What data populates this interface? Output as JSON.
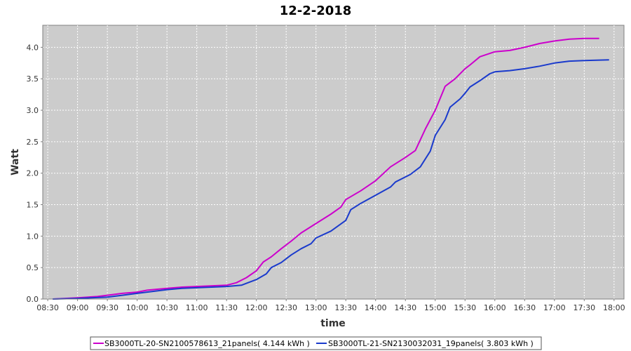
{
  "chart_data": {
    "type": "line",
    "title": "12-2-2018",
    "xlabel": "time",
    "ylabel": "Watt",
    "x_ticks": [
      "08:30",
      "09:00",
      "09:30",
      "10:00",
      "10:30",
      "11:00",
      "11:30",
      "12:00",
      "12:30",
      "13:00",
      "13:30",
      "14:00",
      "14:30",
      "15:00",
      "15:30",
      "16:00",
      "16:30",
      "17:00",
      "17:30",
      "18:00"
    ],
    "y_ticks": [
      "0.0",
      "0.5",
      "1.0",
      "1.5",
      "2.0",
      "2.5",
      "3.0",
      "3.5",
      "4.0"
    ],
    "xlim": [
      "08:25",
      "18:10"
    ],
    "ylim": [
      0,
      4.35
    ],
    "grid": true,
    "legend": "bottom",
    "series": [
      {
        "name": "SB3000TL-20-SN2100578613_21panels( 4.144 kWh )",
        "color": "#cc00cc",
        "points": [
          [
            "08:35",
            0.0
          ],
          [
            "09:00",
            0.02
          ],
          [
            "09:20",
            0.04
          ],
          [
            "09:30",
            0.06
          ],
          [
            "09:45",
            0.09
          ],
          [
            "10:00",
            0.11
          ],
          [
            "10:10",
            0.14
          ],
          [
            "10:30",
            0.17
          ],
          [
            "10:45",
            0.19
          ],
          [
            "11:00",
            0.2
          ],
          [
            "11:30",
            0.22
          ],
          [
            "11:40",
            0.26
          ],
          [
            "11:50",
            0.34
          ],
          [
            "12:00",
            0.45
          ],
          [
            "12:07",
            0.59
          ],
          [
            "12:15",
            0.67
          ],
          [
            "12:25",
            0.8
          ],
          [
            "12:35",
            0.92
          ],
          [
            "12:45",
            1.05
          ],
          [
            "13:00",
            1.2
          ],
          [
            "13:15",
            1.35
          ],
          [
            "13:25",
            1.46
          ],
          [
            "13:30",
            1.58
          ],
          [
            "13:45",
            1.72
          ],
          [
            "14:00",
            1.88
          ],
          [
            "14:15",
            2.1
          ],
          [
            "14:30",
            2.25
          ],
          [
            "14:40",
            2.36
          ],
          [
            "14:50",
            2.7
          ],
          [
            "15:00",
            3.0
          ],
          [
            "15:10",
            3.38
          ],
          [
            "15:20",
            3.5
          ],
          [
            "15:30",
            3.66
          ],
          [
            "15:35",
            3.72
          ],
          [
            "15:45",
            3.85
          ],
          [
            "16:00",
            3.93
          ],
          [
            "16:15",
            3.95
          ],
          [
            "16:30",
            4.0
          ],
          [
            "16:45",
            4.06
          ],
          [
            "17:00",
            4.1
          ],
          [
            "17:15",
            4.13
          ],
          [
            "17:30",
            4.14
          ],
          [
            "17:45",
            4.14
          ]
        ]
      },
      {
        "name": "SB3000TL-21-SN2130032031_19panels( 3.803 kWh )",
        "color": "#1a3acc",
        "points": [
          [
            "08:35",
            0.0
          ],
          [
            "09:00",
            0.01
          ],
          [
            "09:30",
            0.03
          ],
          [
            "09:45",
            0.06
          ],
          [
            "10:00",
            0.09
          ],
          [
            "10:15",
            0.12
          ],
          [
            "10:30",
            0.15
          ],
          [
            "10:45",
            0.17
          ],
          [
            "11:00",
            0.18
          ],
          [
            "11:30",
            0.2
          ],
          [
            "11:45",
            0.22
          ],
          [
            "11:50",
            0.25
          ],
          [
            "12:00",
            0.31
          ],
          [
            "12:10",
            0.4
          ],
          [
            "12:15",
            0.5
          ],
          [
            "12:25",
            0.58
          ],
          [
            "12:35",
            0.7
          ],
          [
            "12:45",
            0.8
          ],
          [
            "12:55",
            0.88
          ],
          [
            "13:00",
            0.97
          ],
          [
            "13:15",
            1.08
          ],
          [
            "13:30",
            1.25
          ],
          [
            "13:35",
            1.42
          ],
          [
            "13:45",
            1.52
          ],
          [
            "14:00",
            1.65
          ],
          [
            "14:15",
            1.78
          ],
          [
            "14:20",
            1.86
          ],
          [
            "14:35",
            1.98
          ],
          [
            "14:45",
            2.1
          ],
          [
            "14:55",
            2.35
          ],
          [
            "15:00",
            2.6
          ],
          [
            "15:10",
            2.85
          ],
          [
            "15:15",
            3.05
          ],
          [
            "15:25",
            3.18
          ],
          [
            "15:30",
            3.27
          ],
          [
            "15:35",
            3.37
          ],
          [
            "15:45",
            3.47
          ],
          [
            "15:55",
            3.58
          ],
          [
            "16:00",
            3.61
          ],
          [
            "16:15",
            3.63
          ],
          [
            "16:30",
            3.66
          ],
          [
            "16:45",
            3.7
          ],
          [
            "17:00",
            3.75
          ],
          [
            "17:15",
            3.78
          ],
          [
            "17:30",
            3.79
          ],
          [
            "17:55",
            3.8
          ]
        ]
      }
    ]
  }
}
